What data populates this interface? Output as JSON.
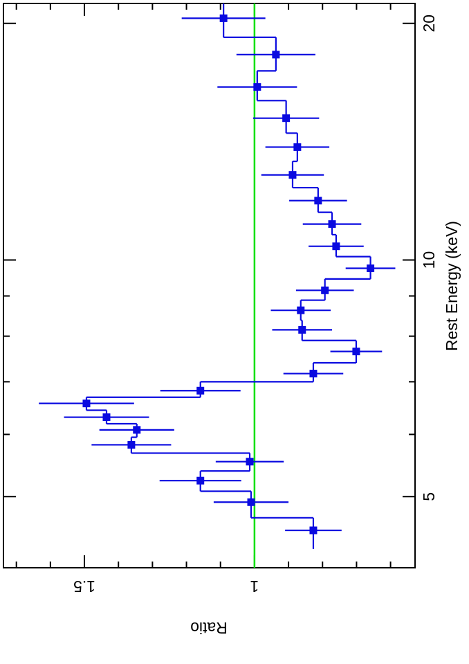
{
  "chart_data": {
    "type": "step",
    "x_label": "Rest Energy (keV)",
    "y_label": "Ratio",
    "xscale": "log",
    "xlim": [
      4.06,
      21.2
    ],
    "ylim": [
      0.528,
      1.738
    ],
    "xticks": [
      5,
      10,
      20
    ],
    "minor_xticks": [
      6,
      7,
      8,
      9
    ],
    "yticks": [
      1,
      1.5
    ],
    "minor_yticks": [
      0.6,
      0.7,
      0.8,
      0.9,
      1.1,
      1.2,
      1.3,
      1.4,
      1.6,
      1.7
    ],
    "reference_line": {
      "value": 1,
      "color": "#00e000"
    },
    "series": [
      {
        "color": "#0a0ae0",
        "x": [
          4.53,
          4.92,
          5.24,
          5.54,
          5.82,
          6.08,
          6.31,
          6.57,
          6.82,
          7.17,
          7.65,
          8.15,
          8.63,
          9.15,
          9.76,
          10.41,
          11.11,
          11.9,
          12.83,
          13.92,
          15.15,
          16.6,
          18.25,
          20.3
        ],
        "values": [
          0.827,
          1.01,
          1.159,
          1.014,
          1.362,
          1.346,
          1.435,
          1.494,
          1.159,
          0.827,
          0.701,
          0.86,
          0.864,
          0.793,
          0.659,
          0.76,
          0.772,
          0.813,
          0.888,
          0.874,
          0.907,
          0.992,
          0.937,
          1.091
        ],
        "y_err": [
          0.083,
          0.11,
          0.12,
          0.1,
          0.117,
          0.11,
          0.125,
          0.14,
          0.118,
          0.088,
          0.076,
          0.088,
          0.088,
          0.085,
          0.073,
          0.081,
          0.086,
          0.085,
          0.092,
          0.094,
          0.097,
          0.117,
          0.116,
          0.123
        ],
        "bin_edges": [
          4.29,
          4.7,
          5.08,
          5.39,
          5.68,
          5.95,
          6.19,
          6.44,
          6.69,
          7.0,
          7.4,
          7.9,
          8.38,
          8.89,
          9.46,
          10.1,
          10.77,
          11.5,
          12.36,
          13.35,
          14.5,
          15.95,
          17.4,
          19.2,
          21.2
        ]
      }
    ]
  }
}
